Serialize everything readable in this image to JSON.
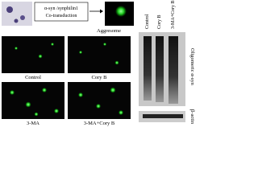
{
  "schematic": {
    "box_lines": [
      "α-syn /synphilin1",
      "Co-transduction"
    ],
    "result": "Aggresome"
  },
  "panels": [
    "Control",
    "Cory B",
    "3-MA",
    "3-MA+Cory B"
  ],
  "blot": {
    "lanes": [
      "Control",
      "Cory B",
      "3-MA+Cory B"
    ],
    "bands": [
      "Oligomeric α-syn",
      "β-actin"
    ]
  }
}
